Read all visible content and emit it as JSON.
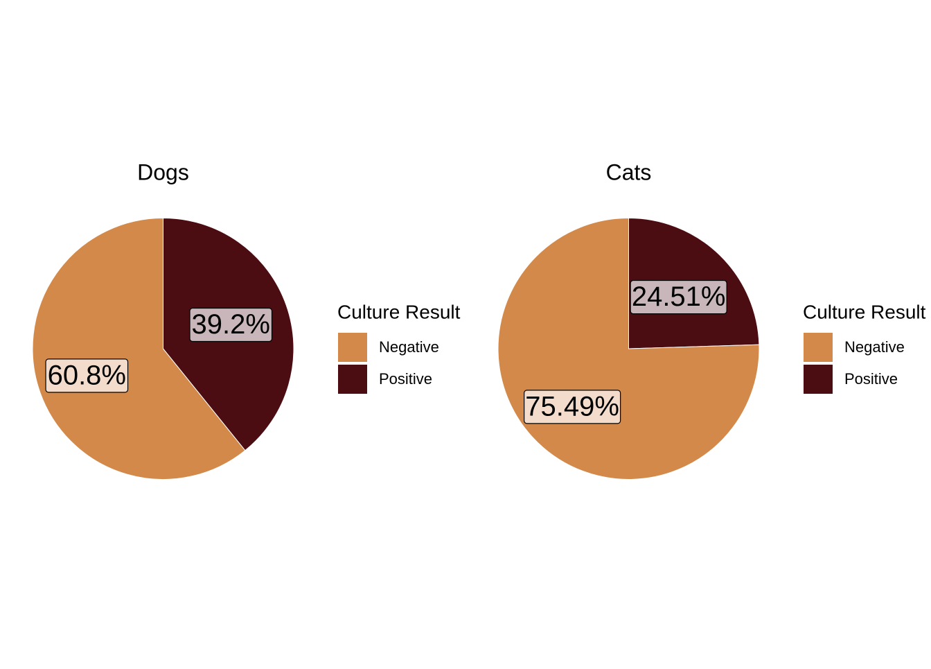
{
  "chart_data": [
    {
      "type": "pie",
      "title": "Dogs",
      "categories": [
        "Negative",
        "Positive"
      ],
      "values": [
        60.8,
        39.2
      ],
      "labels": [
        "60.8%",
        "39.2%"
      ],
      "legend_title": "Culture Result",
      "legend_placement": "right",
      "colors": [
        "#d2894a",
        "#4b0c12"
      ]
    },
    {
      "type": "pie",
      "title": "Cats",
      "categories": [
        "Negative",
        "Positive"
      ],
      "values": [
        75.49,
        24.51
      ],
      "labels": [
        "75.49%",
        "24.51%"
      ],
      "legend_title": "Culture Result",
      "legend_placement": "right",
      "colors": [
        "#d2894a",
        "#4b0c12"
      ]
    }
  ],
  "colors": {
    "negative": "#d2894a",
    "positive": "#4b0c12",
    "label_negative_fill": "#f3dccb",
    "label_positive_fill": "#c8b6ba",
    "background": "#ffffff"
  }
}
